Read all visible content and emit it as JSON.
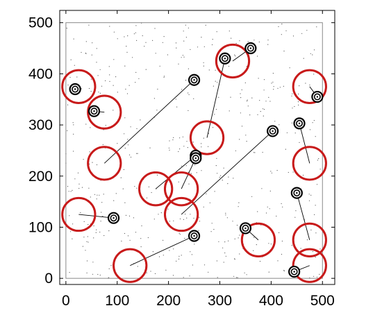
{
  "chart_data": {
    "type": "scatter",
    "title": "",
    "xlabel": "",
    "ylabel": "",
    "xlim": [
      -12,
      524
    ],
    "ylim": [
      -12,
      524
    ],
    "x_ticks": [
      0,
      100,
      200,
      300,
      400,
      500
    ],
    "y_ticks": [
      0,
      100,
      200,
      300,
      400,
      500
    ],
    "grid": false,
    "box": {
      "x0": 0,
      "x1": 500,
      "y0": 0,
      "y1": 500
    },
    "circle_radius": 32,
    "colors": {
      "circle": "#c81a1a",
      "line": "#000000",
      "dot": "#555555",
      "marker": "#000000"
    },
    "series": [
      {
        "kind": "targets",
        "points": [
          {
            "x": 25,
            "y": 375
          },
          {
            "x": 75,
            "y": 325
          },
          {
            "x": 75,
            "y": 225
          },
          {
            "x": 25,
            "y": 125
          },
          {
            "x": 125,
            "y": 25
          },
          {
            "x": 175,
            "y": 175
          },
          {
            "x": 225,
            "y": 175
          },
          {
            "x": 225,
            "y": 125
          },
          {
            "x": 275,
            "y": 275
          },
          {
            "x": 325,
            "y": 425
          },
          {
            "x": 375,
            "y": 75
          },
          {
            "x": 475,
            "y": 375
          },
          {
            "x": 475,
            "y": 225
          },
          {
            "x": 475,
            "y": 75
          },
          {
            "x": 475,
            "y": 25
          }
        ]
      },
      {
        "kind": "agents",
        "points": [
          {
            "x": 18,
            "y": 370
          },
          {
            "x": 55,
            "y": 327
          },
          {
            "x": 250,
            "y": 388
          },
          {
            "x": 93,
            "y": 118
          },
          {
            "x": 250,
            "y": 83
          },
          {
            "x": 253,
            "y": 240
          },
          {
            "x": 253,
            "y": 235
          },
          {
            "x": 403,
            "y": 288
          },
          {
            "x": 310,
            "y": 430
          },
          {
            "x": 360,
            "y": 450
          },
          {
            "x": 350,
            "y": 98
          },
          {
            "x": 490,
            "y": 355
          },
          {
            "x": 455,
            "y": 303
          },
          {
            "x": 450,
            "y": 167
          },
          {
            "x": 445,
            "y": 13
          }
        ]
      },
      {
        "kind": "paths",
        "segments": [
          {
            "from": [
              250,
              388
            ],
            "to": [
              75,
              225
            ]
          },
          {
            "from": [
              18,
              370
            ],
            "to": [
              25,
              375
            ]
          },
          {
            "from": [
              55,
              327
            ],
            "to": [
              75,
              325
            ]
          },
          {
            "from": [
              93,
              118
            ],
            "to": [
              25,
              125
            ]
          },
          {
            "from": [
              250,
              83
            ],
            "to": [
              125,
              25
            ]
          },
          {
            "from": [
              253,
              240
            ],
            "to": [
              175,
              175
            ]
          },
          {
            "from": [
              253,
              235
            ],
            "to": [
              225,
              175
            ]
          },
          {
            "from": [
              403,
              288
            ],
            "to": [
              225,
              125
            ]
          },
          {
            "from": [
              310,
              430
            ],
            "to": [
              275,
              275
            ]
          },
          {
            "from": [
              360,
              450
            ],
            "to": [
              325,
              425
            ]
          },
          {
            "from": [
              350,
              98
            ],
            "to": [
              375,
              75
            ]
          },
          {
            "from": [
              490,
              355
            ],
            "to": [
              475,
              375
            ]
          },
          {
            "from": [
              455,
              303
            ],
            "to": [
              475,
              225
            ]
          },
          {
            "from": [
              450,
              167
            ],
            "to": [
              475,
              75
            ]
          },
          {
            "from": [
              445,
              13
            ],
            "to": [
              475,
              25
            ]
          }
        ]
      }
    ]
  }
}
